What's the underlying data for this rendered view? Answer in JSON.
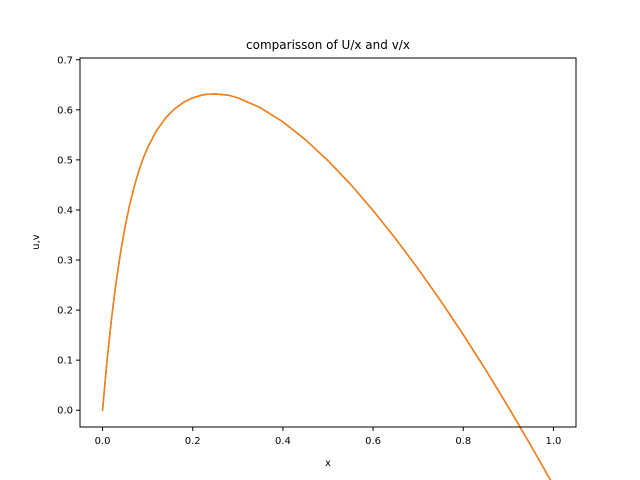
{
  "chart_data": {
    "type": "line",
    "title": "comparisson of U/x and v/x",
    "xlabel": "x",
    "ylabel": "u,v",
    "xlim": [
      -0.05,
      1.05
    ],
    "ylim": [
      -0.0335,
      0.7035
    ],
    "xticks": [
      0.0,
      0.2,
      0.4,
      0.6,
      0.8,
      1.0
    ],
    "xtick_labels": [
      "0.0",
      "0.2",
      "0.4",
      "0.6",
      "0.8",
      "1.0"
    ],
    "yticks": [
      0.0,
      0.1,
      0.2,
      0.3,
      0.4,
      0.5,
      0.6,
      0.7
    ],
    "ytick_labels": [
      "0.0",
      "0.1",
      "0.2",
      "0.3",
      "0.4",
      "0.5",
      "0.6",
      "0.7"
    ],
    "grid": false,
    "legend": "none",
    "series": [
      {
        "color": "#1f77b4",
        "x": [
          0.0,
          0.005,
          0.01,
          0.02,
          0.03,
          0.04,
          0.05,
          0.06,
          0.07,
          0.08,
          0.09,
          0.1,
          0.12,
          0.14,
          0.16,
          0.18,
          0.2,
          0.22,
          0.23,
          0.25,
          0.28,
          0.3,
          0.35,
          0.4,
          0.45,
          0.5,
          0.55,
          0.6,
          0.65,
          0.7,
          0.75,
          0.8,
          0.85,
          0.9,
          0.95,
          1.0
        ],
        "y": [
          0.0,
          0.0499,
          0.0997,
          0.1839,
          0.2551,
          0.3155,
          0.3665,
          0.4096,
          0.4459,
          0.4767,
          0.5027,
          0.5246,
          0.5589,
          0.5839,
          0.6022,
          0.6152,
          0.6239,
          0.6293,
          0.6309,
          0.6319,
          0.629,
          0.624,
          0.6042,
          0.5759,
          0.5402,
          0.4985,
          0.4512,
          0.3989,
          0.3425,
          0.2822,
          0.2183,
          0.1509,
          0.0802,
          0.0063,
          -0.0706,
          -0.15
        ]
      },
      {
        "color": "#ff7f0e",
        "x": [
          0.0,
          0.005,
          0.01,
          0.02,
          0.03,
          0.04,
          0.05,
          0.06,
          0.07,
          0.08,
          0.09,
          0.1,
          0.12,
          0.14,
          0.16,
          0.18,
          0.2,
          0.22,
          0.23,
          0.25,
          0.28,
          0.3,
          0.35,
          0.4,
          0.45,
          0.5,
          0.55,
          0.6,
          0.65,
          0.7,
          0.75,
          0.8,
          0.85,
          0.9,
          0.95,
          1.0
        ],
        "y": [
          0.0,
          0.0499,
          0.0997,
          0.1839,
          0.2551,
          0.3155,
          0.3665,
          0.4096,
          0.4459,
          0.4767,
          0.5027,
          0.5246,
          0.5589,
          0.5839,
          0.6022,
          0.6152,
          0.6239,
          0.6293,
          0.6309,
          0.6319,
          0.629,
          0.624,
          0.6042,
          0.5759,
          0.5402,
          0.4985,
          0.4512,
          0.3989,
          0.3425,
          0.2822,
          0.2183,
          0.1509,
          0.0802,
          0.0063,
          -0.0706,
          -0.15
        ]
      }
    ]
  }
}
